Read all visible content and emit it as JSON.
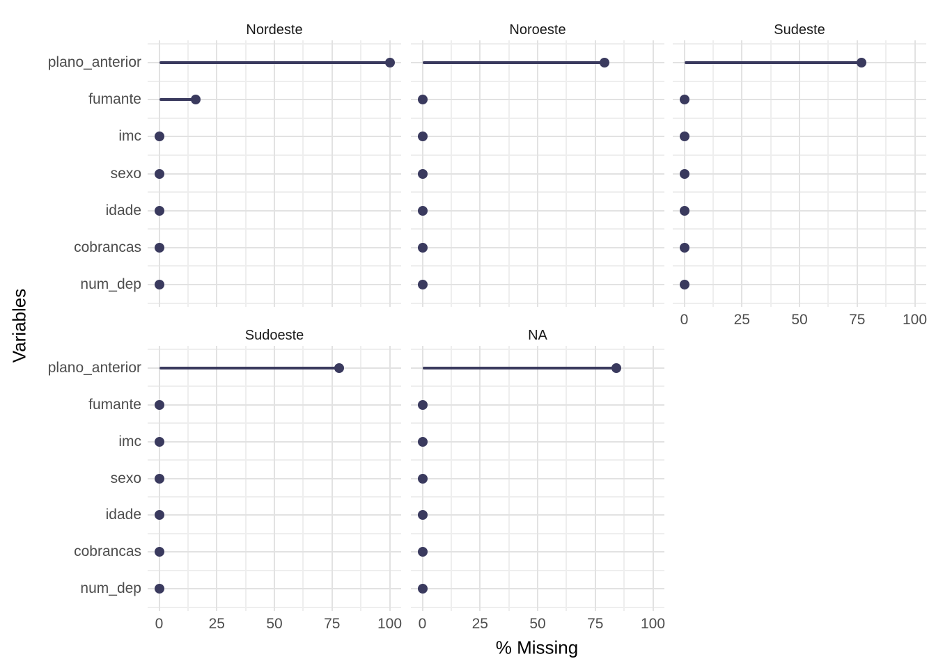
{
  "chart_data": {
    "type": "lollipop",
    "orientation": "horizontal",
    "title": "",
    "xlabel": "% Missing",
    "ylabel": "Variables",
    "xlim": [
      0,
      100
    ],
    "x_ticks": [
      0,
      25,
      50,
      75,
      100
    ],
    "x_minor_ticks": [
      12.5,
      37.5,
      62.5,
      87.5
    ],
    "grid": true,
    "legend": "none",
    "categories": [
      "plano_anterior",
      "fumante",
      "imc",
      "sexo",
      "idade",
      "cobrancas",
      "num_dep"
    ],
    "facets": [
      {
        "label": "Nordeste",
        "row": 0,
        "col": 0,
        "show_x_axis": false,
        "values": [
          100,
          16,
          0,
          0,
          0,
          0,
          0
        ]
      },
      {
        "label": "Noroeste",
        "row": 0,
        "col": 1,
        "show_x_axis": false,
        "values": [
          79,
          0,
          0,
          0,
          0,
          0,
          0
        ]
      },
      {
        "label": "Sudeste",
        "row": 0,
        "col": 2,
        "show_x_axis": true,
        "values": [
          77,
          0,
          0,
          0,
          0,
          0,
          0
        ]
      },
      {
        "label": "Sudoeste",
        "row": 1,
        "col": 0,
        "show_x_axis": true,
        "values": [
          78,
          0,
          0,
          0,
          0,
          0,
          0
        ]
      },
      {
        "label": "NA",
        "row": 1,
        "col": 1,
        "show_x_axis": true,
        "values": [
          84,
          0,
          0,
          0,
          0,
          0,
          0
        ]
      }
    ],
    "colors": {
      "point": "#3A3A5E",
      "stem": "#3A3A5E",
      "grid_major": "#E2E2E2",
      "grid_minor": "#EEEEEE",
      "axis_text": "#4D4D4D",
      "strip_text": "#1A1A1A",
      "axis_title": "#000000",
      "background": "#FFFFFF"
    }
  }
}
